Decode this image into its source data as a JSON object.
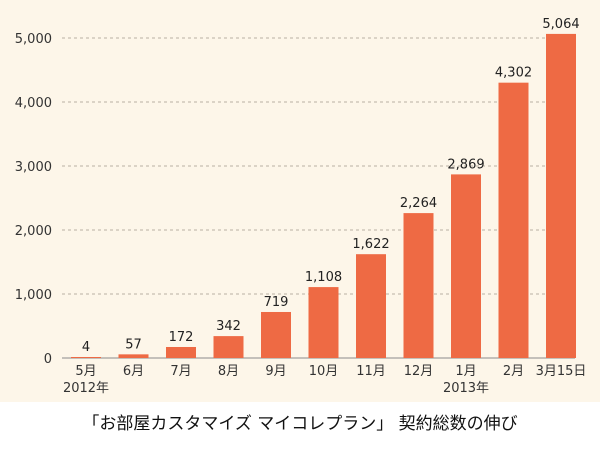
{
  "caption": "「お部屋カスタマイズ マイコレプラン」 契約総数の伸び",
  "chart_data": {
    "type": "bar",
    "title": "「お部屋カスタマイズ マイコレプラン」 契約総数の伸び",
    "categories": [
      "5月",
      "6月",
      "7月",
      "8月",
      "9月",
      "10月",
      "11月",
      "12月",
      "1月",
      "2月",
      "3月15日"
    ],
    "year_labels": [
      {
        "category_index": 0,
        "label": "2012年"
      },
      {
        "category_index": 8,
        "label": "2013年"
      }
    ],
    "values": [
      4,
      57,
      172,
      342,
      719,
      1108,
      1622,
      2264,
      2869,
      4302,
      5064
    ],
    "value_labels": [
      "4",
      "57",
      "172",
      "342",
      "719",
      "1,108",
      "1,622",
      "2,264",
      "2,869",
      "4,302",
      "5,064"
    ],
    "y_ticks": [
      0,
      1000,
      2000,
      3000,
      4000,
      5000
    ],
    "y_tick_labels": [
      "0",
      "1,000",
      "2,000",
      "3,000",
      "4,000",
      "5,000"
    ],
    "ylim": [
      0,
      5300
    ],
    "grid": true,
    "bar_color": "#ee6a44",
    "background_color": "#fdf6e9"
  }
}
